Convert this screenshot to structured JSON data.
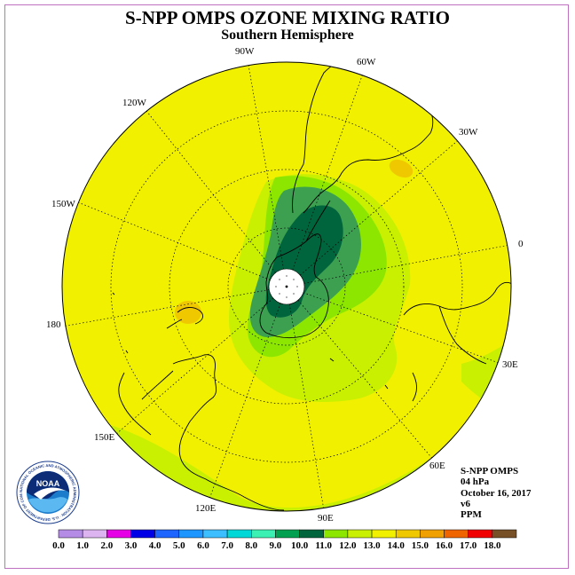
{
  "title": "S-NPP OMPS OZONE MIXING RATIO",
  "subtitle": "Southern Hemisphere",
  "longitude_labels": [
    "90W",
    "60W",
    "30W",
    "0",
    "30E",
    "60E",
    "90E",
    "120E",
    "150E",
    "180",
    "150W",
    "120W"
  ],
  "info": {
    "instrument": "S-NPP OMPS",
    "pressure": "04 hPa",
    "date": "October 16, 2017",
    "version": "v6",
    "unit": "PPM"
  },
  "logo": {
    "text": "NOAA",
    "ring_text": "NATIONAL OCEANIC AND ATMOSPHERIC ADMINISTRATION · U.S. DEPARTMENT OF COMMERCE ·"
  },
  "colorbar": {
    "ticks": [
      "0.0",
      "1.0",
      "2.0",
      "3.0",
      "4.0",
      "5.0",
      "6.0",
      "7.0",
      "8.0",
      "9.0",
      "10.0",
      "11.0",
      "12.0",
      "13.0",
      "14.0",
      "15.0",
      "16.0",
      "17.0",
      "18.0"
    ],
    "colors": [
      "#b48ce6",
      "#dcb4f0",
      "#e600e6",
      "#0000e6",
      "#1e64ff",
      "#1e96ff",
      "#3cbeff",
      "#00d8d8",
      "#3cf0b4",
      "#00a050",
      "#00643c",
      "#8ce600",
      "#c8f000",
      "#f0f000",
      "#f0c800",
      "#f0a000",
      "#f06400",
      "#f00000",
      "#785028"
    ]
  },
  "colors": {
    "frame": "#c070c0",
    "level_11": "#c8f000",
    "level_12": "#f0f000",
    "level_13": "#f0c800",
    "level_8": "#8ce600",
    "level_9": "#3ca050",
    "level_10": "#00643c"
  }
}
